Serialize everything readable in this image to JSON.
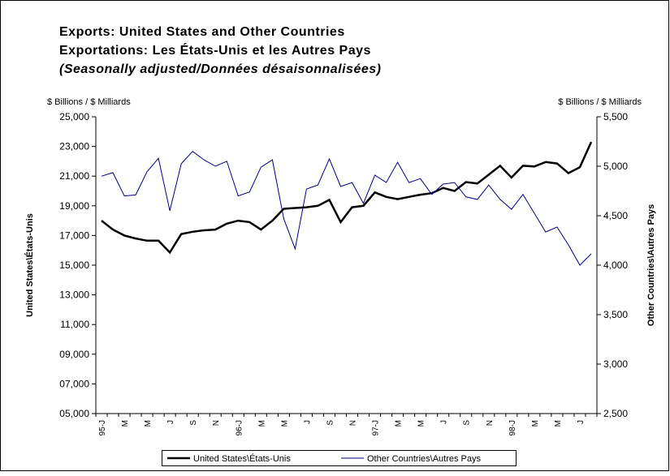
{
  "chart_data": {
    "type": "line",
    "title": "Exports: United States and Other Countries",
    "subtitle": "Exportations: Les États-Unis et les Autres Pays",
    "note": "(Seasonally adjusted/Données désaisonnalisées)",
    "y_unit_label": "$ Billions / $ Milliards",
    "y2_unit_label": "$ Billions / $ Milliards",
    "y_label": "United States\\États-Unis",
    "y2_label": "Other Countries\\Autres Pays",
    "categories": [
      "95-J",
      null,
      "M",
      null,
      "M",
      null,
      "J",
      null,
      "S",
      null,
      "N",
      null,
      "96-J",
      null,
      "M",
      null,
      "M",
      null,
      "J",
      null,
      "S",
      null,
      "N",
      null,
      "97-J",
      null,
      "M",
      null,
      "M",
      null,
      "J",
      null,
      "S",
      null,
      "N",
      null,
      "98-J",
      null,
      "M",
      null,
      "M",
      null,
      "J",
      null
    ],
    "series": [
      {
        "name": "United States\\États-Unis",
        "color": "#000000",
        "axis": "y",
        "values": [
          18000,
          17400,
          17000,
          16800,
          16650,
          16650,
          15850,
          17100,
          17250,
          17350,
          17400,
          17800,
          18000,
          17900,
          17400,
          18000,
          18800,
          18850,
          18900,
          19000,
          19400,
          17900,
          18900,
          19000,
          19900,
          19600,
          19450,
          19600,
          19750,
          19850,
          20200,
          20000,
          20600,
          20500,
          21100,
          21700,
          20900,
          21700,
          21650,
          21950,
          21850,
          21200,
          21600,
          23300
        ]
      },
      {
        "name": "Other Countries\\Autres Pays",
        "color": "#000080",
        "axis": "y2",
        "values": [
          4900,
          4935,
          4700,
          4710,
          4945,
          5080,
          4550,
          5025,
          5150,
          5065,
          5000,
          5050,
          4700,
          4740,
          4990,
          5065,
          4470,
          4165,
          4770,
          4810,
          5075,
          4795,
          4835,
          4625,
          4910,
          4835,
          5040,
          4835,
          4875,
          4715,
          4820,
          4835,
          4690,
          4665,
          4810,
          4665,
          4565,
          4715,
          4525,
          4335,
          4385,
          4205,
          4000,
          4115
        ]
      }
    ],
    "ylim": [
      5000,
      25000
    ],
    "yticks": [
      {
        "value": 5000,
        "label": "05,000"
      },
      {
        "value": 7000,
        "label": "07,000"
      },
      {
        "value": 9000,
        "label": "09,000"
      },
      {
        "value": 11000,
        "label": "11,000"
      },
      {
        "value": 13000,
        "label": "13,000"
      },
      {
        "value": 15000,
        "label": "15,000"
      },
      {
        "value": 17000,
        "label": "17,000"
      },
      {
        "value": 19000,
        "label": "19,000"
      },
      {
        "value": 21000,
        "label": "21,000"
      },
      {
        "value": 23000,
        "label": "23,000"
      },
      {
        "value": 25000,
        "label": "25,000"
      }
    ],
    "y2lim": [
      2500,
      5500
    ],
    "y2ticks": [
      {
        "value": 2500,
        "label": "2,500"
      },
      {
        "value": 3000,
        "label": "3,000"
      },
      {
        "value": 3500,
        "label": "3,500"
      },
      {
        "value": 4000,
        "label": "4,000"
      },
      {
        "value": 4500,
        "label": "4,500"
      },
      {
        "value": 5000,
        "label": "5,000"
      },
      {
        "value": 5500,
        "label": "5,500"
      }
    ],
    "legend": "bottom"
  }
}
